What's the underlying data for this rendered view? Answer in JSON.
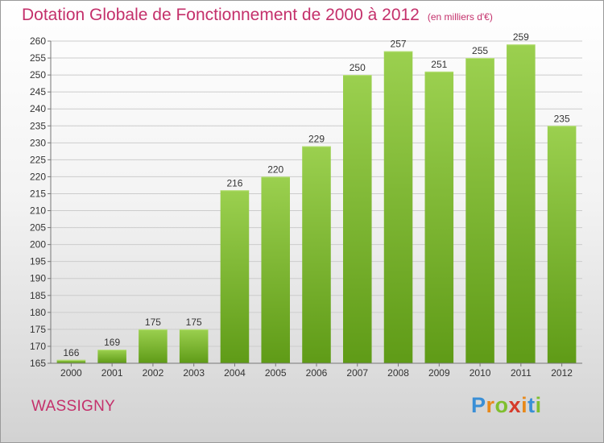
{
  "title": "Dotation Globale de Fonctionnement de 2000 à 2012",
  "unit_note": "(en milliers d'€)",
  "commune": "WASSIGNY",
  "logo": {
    "letters": [
      "P",
      "r",
      "o",
      "x",
      "i",
      "t",
      "i"
    ],
    "colors": [
      "#3a8fd6",
      "#e8891b",
      "#7fbf2e",
      "#d63a2a",
      "#e8891b",
      "#3a8fd6",
      "#7fbf2e"
    ]
  },
  "colors": {
    "accent": "#c4306b",
    "bar_top": "#9bd04f",
    "bar_bottom": "#5f9b17",
    "grid": "#cccccc"
  },
  "chart_data": {
    "type": "bar",
    "categories": [
      "2000",
      "2001",
      "2002",
      "2003",
      "2004",
      "2005",
      "2006",
      "2007",
      "2008",
      "2009",
      "2010",
      "2011",
      "2012"
    ],
    "values": [
      166,
      169,
      175,
      175,
      216,
      220,
      229,
      250,
      257,
      251,
      255,
      259,
      235
    ],
    "yticks": [
      165,
      170,
      175,
      180,
      185,
      190,
      195,
      200,
      205,
      210,
      215,
      220,
      225,
      230,
      235,
      240,
      245,
      250,
      255,
      260
    ],
    "ylim": [
      165,
      260
    ],
    "grid": true,
    "data_labels": true
  }
}
